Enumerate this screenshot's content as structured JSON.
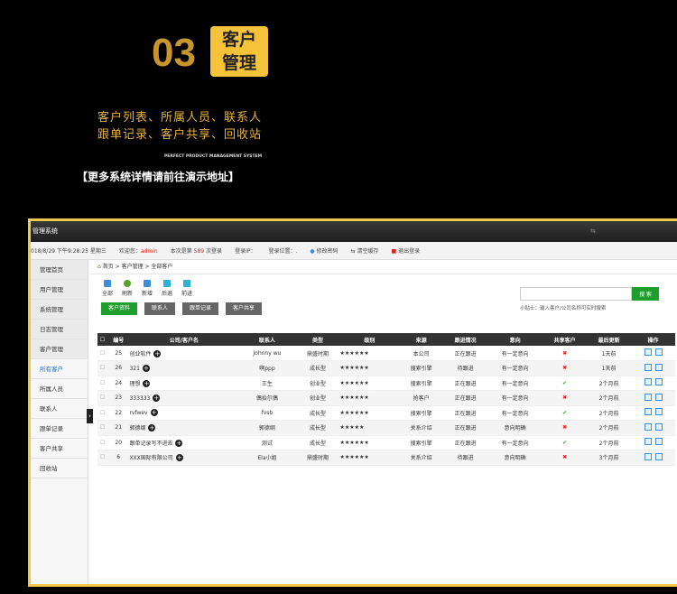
{
  "hero": {
    "number": "03",
    "box_line1": "客户",
    "box_line2": "管理",
    "line1": "客户列表、所属人员、联系人",
    "line2": "跟单记录、客户共享、回收站",
    "subtitle": "PERFECT PRODUCT MANAGEMENT SYSTEM",
    "link": "【更多系统详情请前往演示地址】"
  },
  "app": {
    "title": "管理系统",
    "datetime": "018/8/29 下午9:28:25 星期三",
    "welcome": "欢迎您：",
    "user": "admin",
    "login_count_pre": "本次是第",
    "login_count": "589",
    "login_count_post": "次登录",
    "login_ip": "登录IP：",
    "login_loc": "登录位置：.",
    "change_pwd": "修改密码",
    "clear_cache": "清空缓存",
    "logout": "退出登录"
  },
  "sidebar": {
    "items": [
      "管理首页",
      "用户管理",
      "系统管理",
      "日志管理",
      "客户管理"
    ],
    "sub": [
      "所有客户",
      "所属人员",
      "联系人",
      "跟单记录",
      "客户共享",
      "回收站"
    ]
  },
  "breadcrumb": "首页 > 客户管理 > 全部客户",
  "toolbar": [
    "全部",
    "刷新",
    "新增",
    "后退",
    "前进"
  ],
  "tabs": [
    "客户资料",
    "联系人",
    "跟单记录",
    "客户共享"
  ],
  "search": {
    "button": "搜 索",
    "tip": "小贴士：输入客户/公司名称可实时搜索"
  },
  "table": {
    "headers": [
      "编号",
      "公司/客户名",
      "联系人",
      "类型",
      "级别",
      "来源",
      "跟进情况",
      "意向",
      "共享客户",
      "最后更新",
      "操作"
    ],
    "rows": [
      [
        "25",
        "创业软件",
        "Johnny wu",
        "鼎盛时期",
        "★★★★★★",
        "本公司",
        "正在跟进",
        "有一定意向",
        "no",
        "1天前"
      ],
      [
        "26",
        "321",
        "啊ppp",
        "成长型",
        "★★★★★★",
        "搜索引擎",
        "待跟进",
        "有一定意向",
        "no",
        "1天前"
      ],
      [
        "24",
        "理想",
        "王生",
        "创业型",
        "★★★★★★",
        "搜索引擎",
        "正在跟进",
        "有一定意向",
        "yes",
        "2个月前"
      ],
      [
        "23",
        "333333",
        "偶抬尔偶",
        "创业型",
        "★★★★★★",
        "抢客户",
        "正在跟进",
        "有一定意向",
        "no",
        "2个月前"
      ],
      [
        "22",
        "rvfwev",
        "fvsb",
        "成长型",
        "★★★★★★",
        "搜索引擎",
        "正在跟进",
        "有一定意向",
        "yes",
        "2个月前"
      ],
      [
        "21",
        "郭德纲",
        "郭德纲",
        "成长型",
        "★★★★★",
        "关系介绍",
        "正在跟进",
        "意向明确",
        "no",
        "2个月前"
      ],
      [
        "20",
        "跟单记录写不进去",
        "测试",
        "成长型",
        "★★★★★★",
        "搜索引擎",
        "正在跟进",
        "有一定意向",
        "yes",
        "2个月前"
      ],
      [
        "6",
        "XXX国际有限公司",
        "Ela小姐",
        "鼎盛时期",
        "★★★★★★",
        "关系介绍",
        "待跟进",
        "意向明确",
        "no",
        "3个月前"
      ]
    ]
  }
}
